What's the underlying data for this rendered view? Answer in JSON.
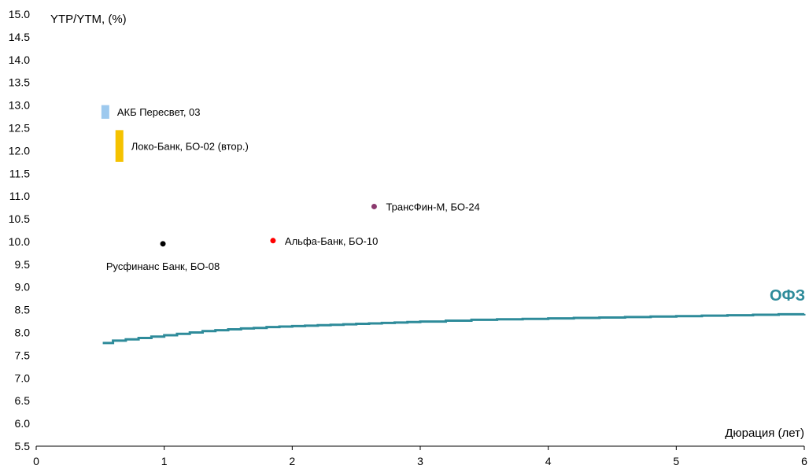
{
  "chart_data": {
    "type": "scatter",
    "title": "",
    "ylabel": "YTP/YTM, (%)",
    "xlabel": "Дюрация (лет)",
    "xlim": [
      0,
      6
    ],
    "ylim": [
      5.5,
      15.0
    ],
    "x_ticks": [
      0,
      1,
      2,
      3,
      4,
      5,
      6
    ],
    "y_ticks": [
      "5.5",
      "6.0",
      "6.5",
      "7.0",
      "7.5",
      "8.0",
      "8.5",
      "9.0",
      "9.5",
      "10.0",
      "10.5",
      "11.0",
      "11.5",
      "12.0",
      "12.5",
      "13.0",
      "13.5",
      "14.0",
      "14.5",
      "15.0"
    ],
    "grid": false,
    "colors": {
      "ofz_line": "#2E8B9A",
      "ofz_label": "#2E8B9A",
      "axis": "#000000"
    },
    "curve": {
      "name": "ОФЗ",
      "color": "#2E8B9A",
      "x": [
        0.52,
        0.6,
        0.7,
        0.8,
        0.9,
        1.0,
        1.1,
        1.2,
        1.3,
        1.4,
        1.5,
        1.6,
        1.7,
        1.8,
        1.9,
        2.0,
        2.1,
        2.2,
        2.3,
        2.4,
        2.5,
        2.6,
        2.7,
        2.8,
        2.9,
        3.0,
        3.2,
        3.4,
        3.6,
        3.8,
        4.0,
        4.2,
        4.4,
        4.6,
        4.8,
        5.0,
        5.2,
        5.4,
        5.6,
        5.8,
        6.0
      ],
      "y": [
        7.77,
        7.82,
        7.85,
        7.88,
        7.91,
        7.94,
        7.97,
        8.0,
        8.03,
        8.05,
        8.07,
        8.09,
        8.1,
        8.12,
        8.13,
        8.14,
        8.15,
        8.16,
        8.17,
        8.18,
        8.19,
        8.2,
        8.21,
        8.22,
        8.23,
        8.24,
        8.26,
        8.28,
        8.29,
        8.3,
        8.31,
        8.32,
        8.33,
        8.34,
        8.35,
        8.36,
        8.37,
        8.38,
        8.39,
        8.4,
        8.41
      ]
    },
    "points": [
      {
        "label": "Русфинанс Банк, БО-08",
        "x": 0.99,
        "y": 9.95,
        "color": "#000000",
        "label_pos": "below"
      },
      {
        "label": "Альфа-Банк, БО-10",
        "x": 1.85,
        "y": 10.02,
        "color": "#FF0000",
        "label_pos": "right"
      },
      {
        "label": "ТрансФин-М, БО-24",
        "x": 2.64,
        "y": 10.77,
        "color": "#8B3A6E",
        "label_pos": "right"
      }
    ],
    "bars": [
      {
        "label": "АКБ Пересвет, 03",
        "x": 0.54,
        "low": 12.7,
        "high": 13.0,
        "color": "#9DC9EE"
      },
      {
        "label": "Локо-Банк, БО-02 (втор.)",
        "x": 0.65,
        "low": 11.75,
        "high": 12.45,
        "color": "#F5C200"
      }
    ]
  }
}
